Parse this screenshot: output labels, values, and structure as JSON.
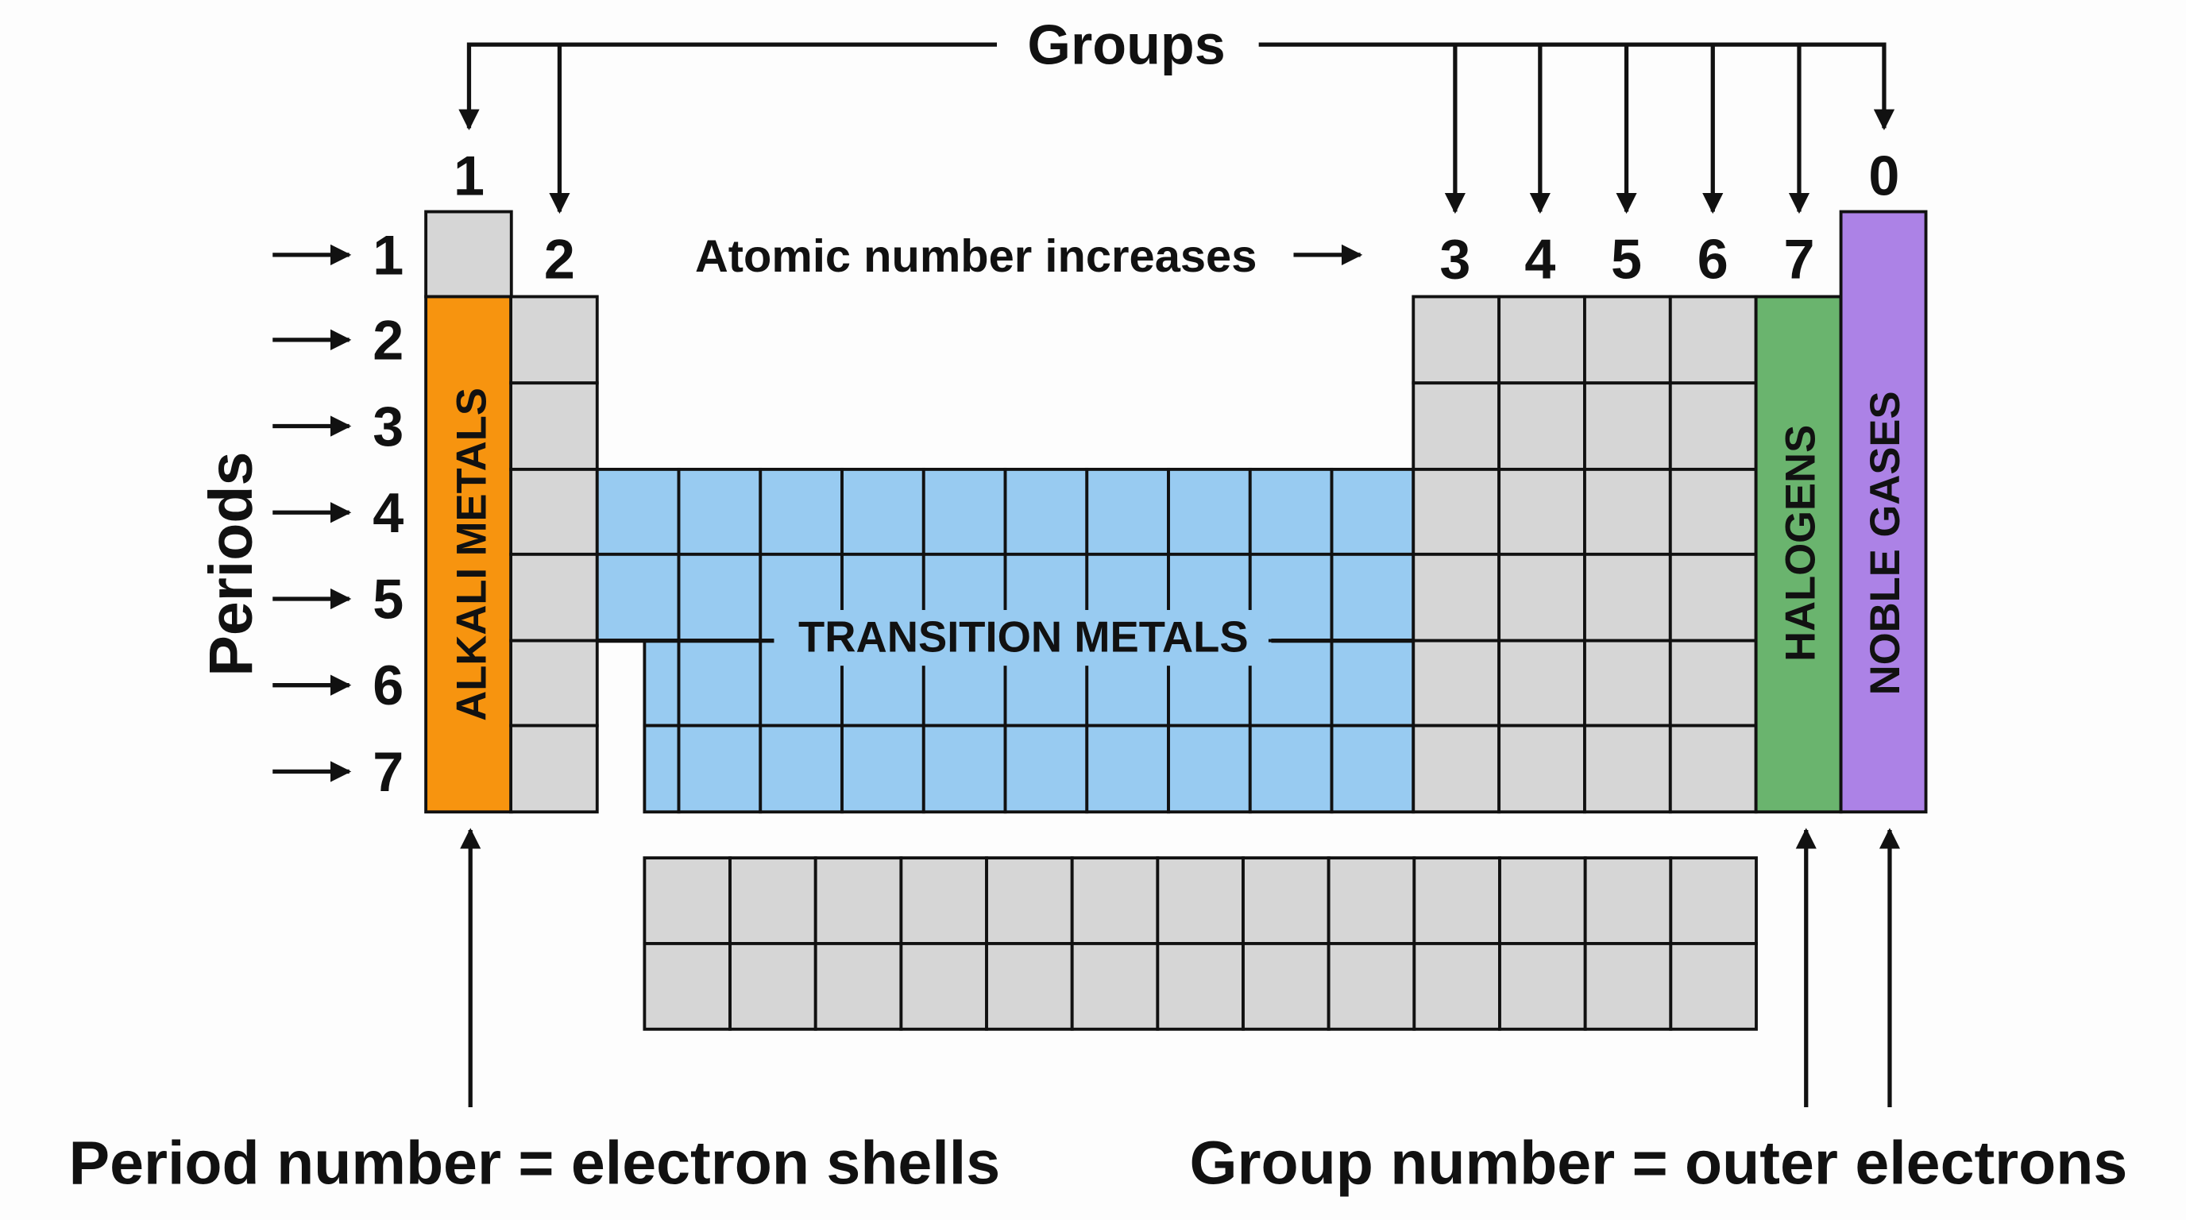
{
  "title": "Groups",
  "groups": [
    "1",
    "2",
    "3",
    "4",
    "5",
    "6",
    "7",
    "0"
  ],
  "atomic_number_note": "Atomic number increases",
  "periods_label": "Periods",
  "periods": [
    "1",
    "2",
    "3",
    "4",
    "5",
    "6",
    "7"
  ],
  "blocks": {
    "alkali": "ALKALI METALS",
    "transition": "TRANSITION METALS",
    "halogens": "HALOGENS",
    "noble": "NOBLE GASES"
  },
  "footer": {
    "left": "Period number = electron shells",
    "right": "Group number = outer electrons"
  },
  "colors": {
    "alkali": "#f7940f",
    "transition": "#98cbf1",
    "halogens": "#6ab46e",
    "noble": "#ac82e6",
    "other": "#d6d6d6"
  }
}
